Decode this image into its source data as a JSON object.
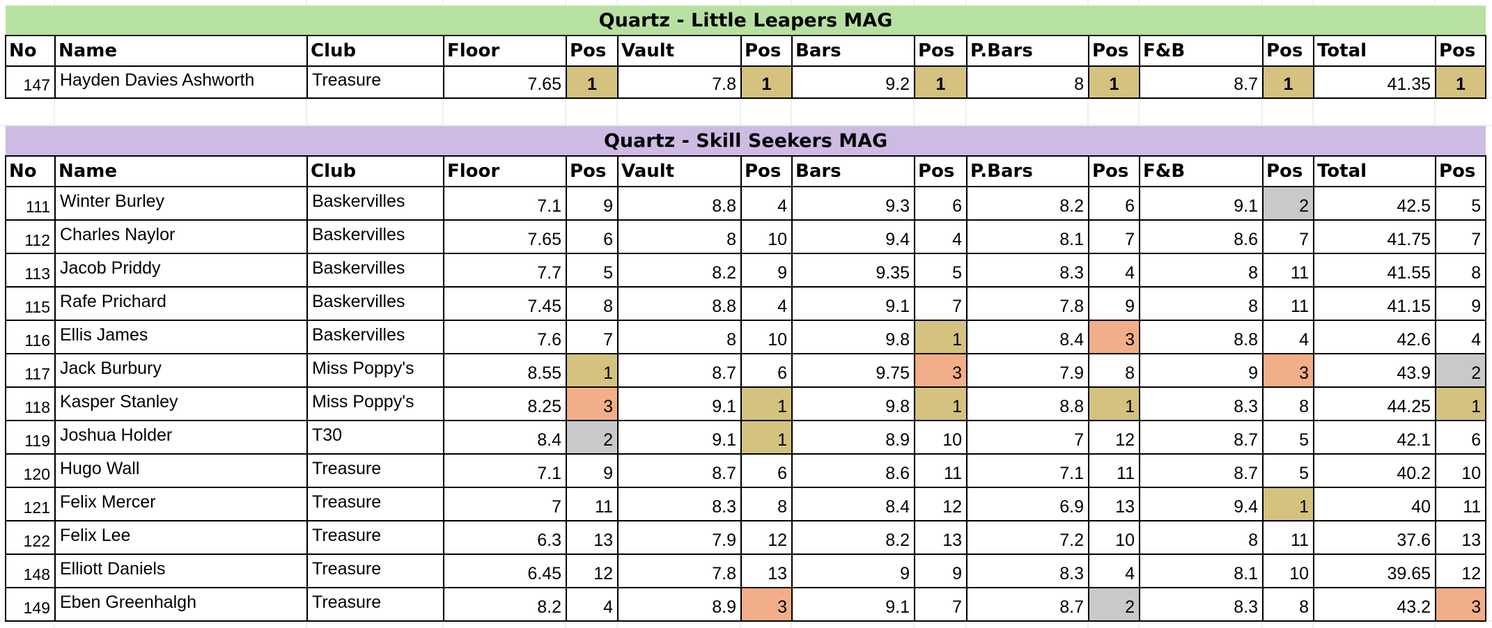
{
  "headers": [
    "No",
    "Name",
    "Club",
    "Floor",
    "Pos",
    "Vault",
    "Pos",
    "Bars",
    "Pos",
    "P.Bars",
    "Pos",
    "F&B",
    "Pos",
    "Total",
    "Pos"
  ],
  "colors": {
    "leapers_title_bg": "#b7e1a1",
    "seekers_title_bg": "#cdbbe4",
    "gold": "#d4c27e",
    "silver": "#c9c9c9",
    "bronze": "#f2ae88"
  },
  "leapers": {
    "title": "Quartz - Little Leapers MAG",
    "rows": [
      {
        "no": "147",
        "name": "Hayden Davies Ashworth",
        "club": "Treasure",
        "floor": "7.65",
        "floor_pos": "1",
        "vault": "7.8",
        "vault_pos": "1",
        "bars": "9.2",
        "bars_pos": "1",
        "pbars": "8",
        "pbars_pos": "1",
        "fb": "8.7",
        "fb_pos": "1",
        "total": "41.35",
        "total_pos": "1"
      }
    ]
  },
  "seekers": {
    "title": "Quartz -  Skill Seekers MAG",
    "rows": [
      {
        "no": "111",
        "name": "Winter Burley",
        "club": "Baskervilles",
        "floor": "7.1",
        "floor_pos": "9",
        "vault": "8.8",
        "vault_pos": "4",
        "bars": "9.3",
        "bars_pos": "6",
        "pbars": "8.2",
        "pbars_pos": "6",
        "fb": "9.1",
        "fb_pos": "2",
        "total": "42.5",
        "total_pos": "5"
      },
      {
        "no": "112",
        "name": "Charles Naylor",
        "club": "Baskervilles",
        "floor": "7.65",
        "floor_pos": "6",
        "vault": "8",
        "vault_pos": "10",
        "bars": "9.4",
        "bars_pos": "4",
        "pbars": "8.1",
        "pbars_pos": "7",
        "fb": "8.6",
        "fb_pos": "7",
        "total": "41.75",
        "total_pos": "7"
      },
      {
        "no": "113",
        "name": "Jacob Priddy",
        "club": "Baskervilles",
        "floor": "7.7",
        "floor_pos": "5",
        "vault": "8.2",
        "vault_pos": "9",
        "bars": "9.35",
        "bars_pos": "5",
        "pbars": "8.3",
        "pbars_pos": "4",
        "fb": "8",
        "fb_pos": "11",
        "total": "41.55",
        "total_pos": "8"
      },
      {
        "no": "115",
        "name": "Rafe Prichard",
        "club": "Baskervilles",
        "floor": "7.45",
        "floor_pos": "8",
        "vault": "8.8",
        "vault_pos": "4",
        "bars": "9.1",
        "bars_pos": "7",
        "pbars": "7.8",
        "pbars_pos": "9",
        "fb": "8",
        "fb_pos": "11",
        "total": "41.15",
        "total_pos": "9"
      },
      {
        "no": "116",
        "name": "Ellis James",
        "club": "Baskervilles",
        "floor": "7.6",
        "floor_pos": "7",
        "vault": "8",
        "vault_pos": "10",
        "bars": "9.8",
        "bars_pos": "1",
        "pbars": "8.4",
        "pbars_pos": "3",
        "fb": "8.8",
        "fb_pos": "4",
        "total": "42.6",
        "total_pos": "4"
      },
      {
        "no": "117",
        "name": "Jack Burbury",
        "club": "Miss Poppy's",
        "floor": "8.55",
        "floor_pos": "1",
        "vault": "8.7",
        "vault_pos": "6",
        "bars": "9.75",
        "bars_pos": "3",
        "pbars": "7.9",
        "pbars_pos": "8",
        "fb": "9",
        "fb_pos": "3",
        "total": "43.9",
        "total_pos": "2"
      },
      {
        "no": "118",
        "name": "Kasper Stanley",
        "club": "Miss Poppy's",
        "floor": "8.25",
        "floor_pos": "3",
        "vault": "9.1",
        "vault_pos": "1",
        "bars": "9.8",
        "bars_pos": "1",
        "pbars": "8.8",
        "pbars_pos": "1",
        "fb": "8.3",
        "fb_pos": "8",
        "total": "44.25",
        "total_pos": "1"
      },
      {
        "no": "119",
        "name": "Joshua Holder",
        "club": "T30",
        "floor": "8.4",
        "floor_pos": "2",
        "vault": "9.1",
        "vault_pos": "1",
        "bars": "8.9",
        "bars_pos": "10",
        "pbars": "7",
        "pbars_pos": "12",
        "fb": "8.7",
        "fb_pos": "5",
        "total": "42.1",
        "total_pos": "6"
      },
      {
        "no": "120",
        "name": "Hugo Wall",
        "club": "Treasure",
        "floor": "7.1",
        "floor_pos": "9",
        "vault": "8.7",
        "vault_pos": "6",
        "bars": "8.6",
        "bars_pos": "11",
        "pbars": "7.1",
        "pbars_pos": "11",
        "fb": "8.7",
        "fb_pos": "5",
        "total": "40.2",
        "total_pos": "10"
      },
      {
        "no": "121",
        "name": "Felix Mercer",
        "club": "Treasure",
        "floor": "7",
        "floor_pos": "11",
        "vault": "8.3",
        "vault_pos": "8",
        "bars": "8.4",
        "bars_pos": "12",
        "pbars": "6.9",
        "pbars_pos": "13",
        "fb": "9.4",
        "fb_pos": "1",
        "total": "40",
        "total_pos": "11"
      },
      {
        "no": "122",
        "name": "Felix Lee",
        "club": "Treasure",
        "floor": "6.3",
        "floor_pos": "13",
        "vault": "7.9",
        "vault_pos": "12",
        "bars": "8.2",
        "bars_pos": "13",
        "pbars": "7.2",
        "pbars_pos": "10",
        "fb": "8",
        "fb_pos": "11",
        "total": "37.6",
        "total_pos": "13"
      },
      {
        "no": "148",
        "name": "Elliott Daniels",
        "club": "Treasure",
        "floor": "6.45",
        "floor_pos": "12",
        "vault": "7.8",
        "vault_pos": "13",
        "bars": "9",
        "bars_pos": "9",
        "pbars": "8.3",
        "pbars_pos": "4",
        "fb": "8.1",
        "fb_pos": "10",
        "total": "39.65",
        "total_pos": "12"
      },
      {
        "no": "149",
        "name": "Eben Greenhalgh",
        "club": "Treasure",
        "floor": "8.2",
        "floor_pos": "4",
        "vault": "8.9",
        "vault_pos": "3",
        "bars": "9.1",
        "bars_pos": "7",
        "pbars": "8.7",
        "pbars_pos": "2",
        "fb": "8.3",
        "fb_pos": "8",
        "total": "43.2",
        "total_pos": "3"
      }
    ]
  }
}
